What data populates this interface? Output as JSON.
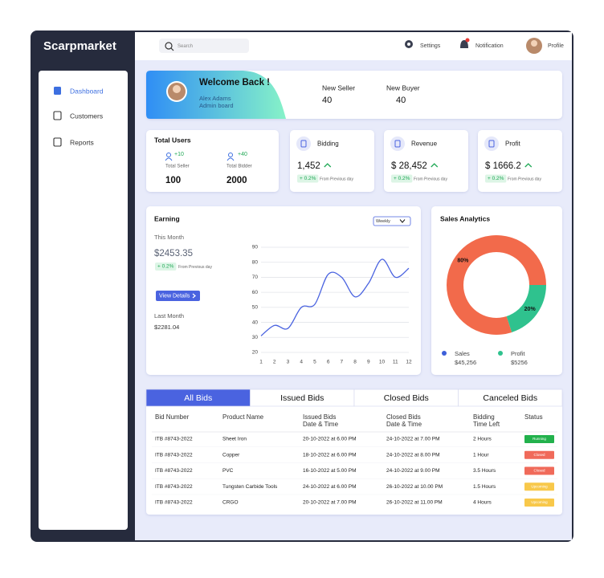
{
  "sidebar": {
    "brand": "Scarpmarket",
    "menu": [
      "Dashboard",
      "Customers",
      "Reports"
    ]
  },
  "topbar": {
    "search_placeholder": "Search",
    "settings": "Settings",
    "notification": "Notification",
    "profile": "Profile"
  },
  "welcome": {
    "title": "Welcome Back !",
    "name": "Alex Adams",
    "role": "Admin board",
    "stats": [
      {
        "label": "New Seller",
        "value": "40"
      },
      {
        "label": "New Buyer",
        "value": "40"
      }
    ]
  },
  "total_users": {
    "title": "Total Users",
    "items": [
      {
        "change": "+10",
        "label": "Total Seller",
        "value": "100"
      },
      {
        "change": "+40",
        "label": "Total Bidder",
        "value": "2000"
      }
    ]
  },
  "kpis": [
    {
      "title": "Bidding",
      "value": "1,452",
      "change": "+ 0.2%",
      "note": "From Previous day"
    },
    {
      "title": "Revenue",
      "value": "$ 28,452",
      "change": "+ 0.2%",
      "note": "From Previous day"
    },
    {
      "title": "Profit",
      "value": "$ 1666.2",
      "change": "+ 0.2%",
      "note": "From Previous day"
    }
  ],
  "earning": {
    "title": "Earning",
    "period": "Weekly",
    "this_month_label": "This Month",
    "this_month_value": "$2453.35",
    "change": "+ 0.2%",
    "note": "From Previous day",
    "button": "View Details",
    "last_month_label": "Last Month",
    "last_month_value": "$2281.04",
    "chart": {
      "type": "line",
      "x": [
        1,
        2,
        3,
        4,
        5,
        6,
        7,
        8,
        9,
        10,
        11,
        12
      ],
      "values": [
        31,
        38,
        36,
        50,
        52,
        72,
        70,
        57,
        66,
        82,
        70,
        76
      ],
      "color": "#4a63e0",
      "xlim": [
        1,
        12
      ],
      "ylim": [
        20,
        90
      ],
      "xticks": [
        1,
        2,
        3,
        4,
        5,
        6,
        7,
        8,
        9,
        10,
        11,
        12
      ],
      "yticks": [
        20,
        30,
        40,
        50,
        60,
        70,
        80,
        90
      ],
      "grid": true
    }
  },
  "sales_analytics": {
    "title": "Sales Analytics",
    "chart": {
      "type": "pie",
      "donut": true,
      "categories": [
        "Sales",
        "Profit"
      ],
      "values": [
        80,
        20
      ],
      "value_labels": [
        "80%",
        "20%"
      ],
      "colors": [
        "#f26a4b",
        "#2fc28e"
      ],
      "legend_colors": [
        "#3d5fd9",
        "#2fc28e"
      ],
      "amounts": [
        "$45,256",
        "$5256"
      ]
    }
  },
  "bids": {
    "tabs": [
      "All Bids",
      "Issued Bids",
      "Closed Bids",
      "Canceled Bids"
    ],
    "active_tab": 0,
    "headers": [
      [
        "Bid Number"
      ],
      [
        "Product Name"
      ],
      [
        "Issued Bids",
        "Date & Time"
      ],
      [
        "Closed Bids",
        "Date & Time"
      ],
      [
        "Bidding",
        "Time Left"
      ],
      [
        "Status"
      ]
    ],
    "rows": [
      [
        "ITB #8743-2022",
        "Sheet Iron",
        "20-10-2022 at 6.00 PM",
        "24-10-2022 at 7.00 PM",
        "2 Hours",
        "Running"
      ],
      [
        "ITB #8743-2022",
        "Copper",
        "18-10-2022 at 6.00 PM",
        "24-10-2022 at 8.00 PM",
        "1 Hour",
        "Closed"
      ],
      [
        "ITB #8743-2022",
        "PVC",
        "16-10-2022 at 5.00 PM",
        "24-10-2022 at 9.00 PM",
        "3.5 Hours",
        "Closed"
      ],
      [
        "ITB #8743-2022",
        "Tungsten Carbide Tools",
        "24-10-2022 at 6.00 PM",
        "26-10-2022 at 10.00 PM",
        "1.5 Hours",
        "Upcoming"
      ],
      [
        "ITB #8743-2022",
        "CRGO",
        "20-10-2022 at 7.00 PM",
        "26-10-2022 at 11.00 PM",
        "4 Hours",
        "Upcoming"
      ]
    ],
    "status_colors": [
      "#22b14c",
      "#f06a5a",
      "#f06a5a",
      "#f8c84a",
      "#f8c84a"
    ]
  }
}
